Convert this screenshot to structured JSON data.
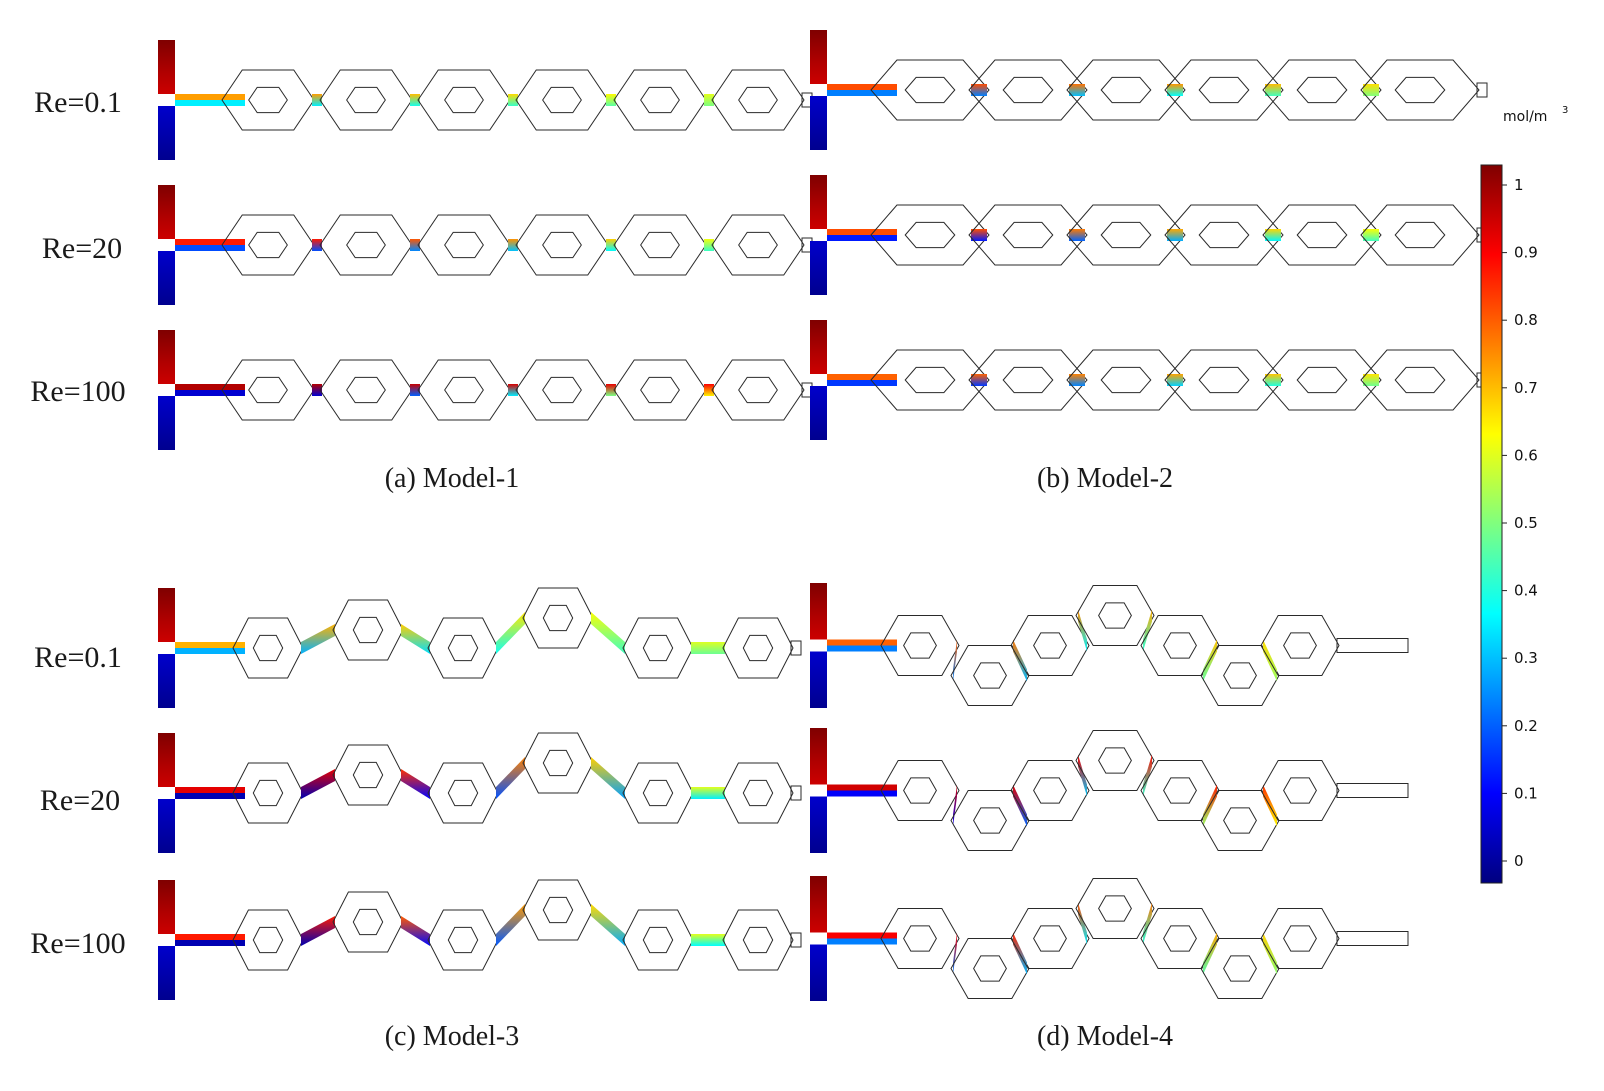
{
  "panels": [
    {
      "caption": "(a) Model-1",
      "rows": [
        {
          "label": "Re=0.1",
          "top": 0.72,
          "bottom": 0.36,
          "out": 0.55
        },
        {
          "label": "Re=20",
          "top": 0.85,
          "bottom": 0.2,
          "out": 0.52
        },
        {
          "label": "Re=100",
          "top": 0.95,
          "bottom": 0.08,
          "out": 0.85
        }
      ]
    },
    {
      "caption": "(b) Model-2",
      "rows": [
        {
          "label": "",
          "top": 0.8,
          "bottom": 0.25,
          "out": 0.6
        },
        {
          "label": "",
          "top": 0.8,
          "bottom": 0.15,
          "out": 0.55
        },
        {
          "label": "",
          "top": 0.78,
          "bottom": 0.18,
          "out": 0.6
        }
      ]
    },
    {
      "caption": "(c) Model-3",
      "rows": [
        {
          "label": "Re=0.1",
          "top": 0.7,
          "bottom": 0.3,
          "out": 0.55
        },
        {
          "label": "Re=20",
          "top": 0.9,
          "bottom": 0.05,
          "out": 0.48
        },
        {
          "label": "Re=100",
          "top": 0.85,
          "bottom": 0.05,
          "out": 0.5
        }
      ]
    },
    {
      "caption": "(d) Model-4",
      "rows": [
        {
          "label": "",
          "top": 0.78,
          "bottom": 0.25,
          "out": 0.62
        },
        {
          "label": "",
          "top": 0.92,
          "bottom": 0.12,
          "out": 0.8
        },
        {
          "label": "",
          "top": 0.88,
          "bottom": 0.25,
          "out": 0.6
        }
      ]
    }
  ],
  "colorbar": {
    "unit": "mol/m",
    "unit_sup": "3",
    "min": 0,
    "max": 1,
    "ticks": [
      "1",
      "0.9",
      "0.8",
      "0.7",
      "0.6",
      "0.5",
      "0.4",
      "0.3",
      "0.2",
      "0.1",
      "0"
    ],
    "colormap": [
      "#00007f",
      "#0000ff",
      "#007fff",
      "#00ffff",
      "#7fff7f",
      "#ffff00",
      "#ff7f00",
      "#ff0000",
      "#7f0000"
    ]
  }
}
